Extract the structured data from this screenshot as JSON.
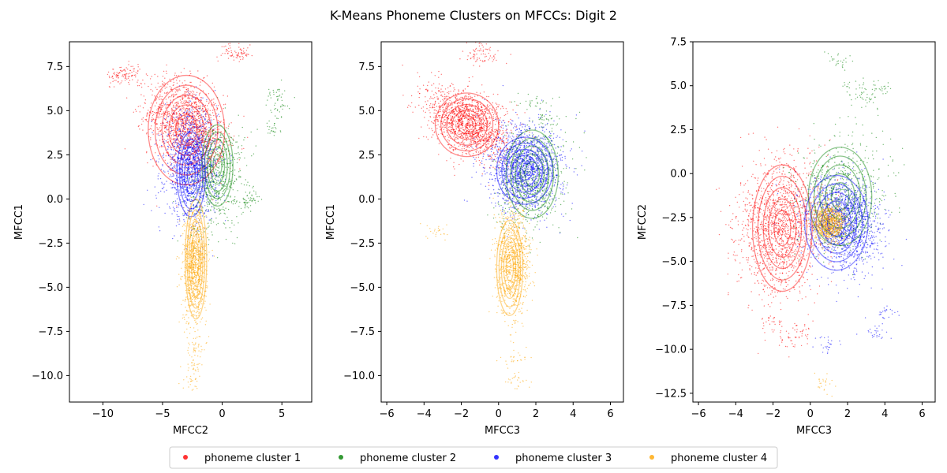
{
  "figure": {
    "title": "K-Means Phoneme Clusters on MFCCs: Digit 2"
  },
  "colors": {
    "cluster1": "#ff0000",
    "cluster2": "#008000",
    "cluster3": "#0000ff",
    "cluster4": "#ffa500"
  },
  "legend": {
    "placement": "bottom-center",
    "entries": [
      "phoneme cluster 1",
      "phoneme cluster 2",
      "phoneme cluster 3",
      "phoneme cluster 4"
    ]
  },
  "chart_data": [
    {
      "type": "scatter",
      "xlabel": "MFCC2",
      "ylabel": "MFCC1",
      "xlim": [
        -12.8,
        7.5
      ],
      "ylim": [
        -11.5,
        8.9
      ],
      "xticks": [
        -10,
        -5,
        0,
        5
      ],
      "yticks": [
        -10.0,
        -7.5,
        -5.0,
        -2.5,
        0.0,
        2.5,
        5.0,
        7.5
      ],
      "grid": false,
      "series": [
        {
          "name": "phoneme cluster 1",
          "color": "#ff0000",
          "center": [
            -3.0,
            4.2
          ],
          "spread": [
            1.6,
            1.3
          ],
          "corr": -0.3,
          "n": 1500,
          "extra_points": [
            [
              0.6,
              8.5
            ],
            [
              1.2,
              8.2
            ],
            [
              1.8,
              8.1
            ],
            [
              -9,
              7.0
            ],
            [
              -8.5,
              6.9
            ],
            [
              -8,
              7.1
            ],
            [
              -7.5,
              7.2
            ]
          ]
        },
        {
          "name": "phoneme cluster 2",
          "color": "#008000",
          "center": [
            -0.5,
            1.2
          ],
          "spread": [
            1.2,
            1.6
          ],
          "corr": 0.2,
          "n": 600,
          "extra_points": [
            [
              4.5,
              6.0
            ],
            [
              4.8,
              5.2
            ],
            [
              4.2,
              4.0
            ],
            [
              2.5,
              0.0
            ],
            [
              2.0,
              -0.3
            ]
          ]
        },
        {
          "name": "phoneme cluster 3",
          "color": "#0000ff",
          "center": [
            -2.6,
            1.9
          ],
          "spread": [
            1.1,
            1.5
          ],
          "corr": 0.0,
          "n": 1400,
          "extra_points": []
        },
        {
          "name": "phoneme cluster 4",
          "color": "#ffa500",
          "center": [
            -2.3,
            -3.8
          ],
          "spread": [
            0.5,
            1.6
          ],
          "corr": 0.0,
          "n": 900,
          "extra_points": [
            [
              -2.5,
              -8.5
            ],
            [
              -2.4,
              -9.5
            ],
            [
              -2.6,
              -10.4
            ]
          ]
        }
      ],
      "contours": [
        {
          "color": "#ff0000",
          "center": [
            -3.0,
            3.9
          ],
          "rx": 3.2,
          "ry": 3.1
        },
        {
          "color": "#008000",
          "center": [
            -0.4,
            1.9
          ],
          "rx": 1.3,
          "ry": 2.3
        },
        {
          "color": "#0000ff",
          "center": [
            -2.6,
            1.4
          ],
          "rx": 1.2,
          "ry": 2.4
        },
        {
          "color": "#ffa500",
          "center": [
            -2.2,
            -3.4
          ],
          "rx": 0.9,
          "ry": 3.4
        }
      ]
    },
    {
      "type": "scatter",
      "xlabel": "MFCC3",
      "ylabel": "MFCC1",
      "xlim": [
        -6.3,
        6.7
      ],
      "ylim": [
        -11.5,
        8.9
      ],
      "xticks": [
        -6,
        -4,
        -2,
        0,
        2,
        4,
        6
      ],
      "yticks": [
        -10.0,
        -7.5,
        -5.0,
        -2.5,
        0.0,
        2.5,
        5.0,
        7.5
      ],
      "grid": false,
      "series": [
        {
          "name": "phoneme cluster 1",
          "color": "#ff0000",
          "center": [
            -1.6,
            4.3
          ],
          "spread": [
            1.1,
            1.0
          ],
          "corr": -0.4,
          "n": 1500,
          "extra_points": [
            [
              -1.0,
              8.5
            ],
            [
              -1.3,
              8.0
            ],
            [
              -0.5,
              8.2
            ]
          ]
        },
        {
          "name": "phoneme cluster 2",
          "color": "#008000",
          "center": [
            1.8,
            1.2
          ],
          "spread": [
            0.9,
            1.5
          ],
          "corr": 0.2,
          "n": 600,
          "extra_points": [
            [
              2.0,
              5.5
            ],
            [
              2.5,
              4.5
            ]
          ]
        },
        {
          "name": "phoneme cluster 3",
          "color": "#0000ff",
          "center": [
            1.4,
            1.8
          ],
          "spread": [
            1.0,
            1.2
          ],
          "corr": 0.0,
          "n": 1400,
          "extra_points": []
        },
        {
          "name": "phoneme cluster 4",
          "color": "#ffa500",
          "center": [
            0.8,
            -3.5
          ],
          "spread": [
            0.45,
            1.5
          ],
          "corr": 0.0,
          "n": 900,
          "extra_points": [
            [
              1.0,
              -9.0
            ],
            [
              0.9,
              -10.3
            ],
            [
              -3.2,
              -1.9
            ]
          ]
        }
      ],
      "contours": [
        {
          "color": "#ff0000",
          "center": [
            -1.7,
            4.2
          ],
          "rx": 1.7,
          "ry": 1.8
        },
        {
          "color": "#008000",
          "center": [
            1.8,
            1.4
          ],
          "rx": 1.4,
          "ry": 2.5
        },
        {
          "color": "#0000ff",
          "center": [
            1.4,
            1.6
          ],
          "rx": 1.5,
          "ry": 1.9
        },
        {
          "color": "#ffa500",
          "center": [
            0.6,
            -3.9
          ],
          "rx": 0.7,
          "ry": 2.7
        }
      ]
    },
    {
      "type": "scatter",
      "xlabel": "MFCC3",
      "ylabel": "MFCC2",
      "xlim": [
        -6.3,
        6.7
      ],
      "ylim": [
        -13.0,
        7.5
      ],
      "xticks": [
        -6,
        -4,
        -2,
        0,
        2,
        4,
        6
      ],
      "yticks": [
        -12.5,
        -10.0,
        -7.5,
        -5.0,
        -2.5,
        0.0,
        2.5,
        5.0,
        7.5
      ],
      "grid": false,
      "series": [
        {
          "name": "phoneme cluster 1",
          "color": "#ff0000",
          "center": [
            -1.6,
            -3.0
          ],
          "spread": [
            1.1,
            1.9
          ],
          "corr": 0.1,
          "n": 1500,
          "extra_points": [
            [
              -0.5,
              -9.0
            ],
            [
              -1.2,
              -9.5
            ],
            [
              -2.0,
              -8.5
            ]
          ]
        },
        {
          "name": "phoneme cluster 2",
          "color": "#008000",
          "center": [
            1.7,
            -1.2
          ],
          "spread": [
            1.2,
            1.6
          ],
          "corr": 0.1,
          "n": 600,
          "extra_points": [
            [
              2.5,
              5.0
            ],
            [
              3.0,
              4.2
            ],
            [
              1.5,
              6.5
            ],
            [
              3.8,
              4.8
            ]
          ]
        },
        {
          "name": "phoneme cluster 3",
          "color": "#0000ff",
          "center": [
            1.8,
            -2.9
          ],
          "spread": [
            1.0,
            1.3
          ],
          "corr": -0.1,
          "n": 1400,
          "extra_points": [
            [
              3.5,
              -9.0
            ],
            [
              1.0,
              -9.8
            ],
            [
              4.0,
              -8.0
            ]
          ]
        },
        {
          "name": "phoneme cluster 4",
          "color": "#ffa500",
          "center": [
            1.0,
            -2.8
          ],
          "spread": [
            0.5,
            0.6
          ],
          "corr": 0.0,
          "n": 700,
          "extra_points": [
            [
              0.8,
              -12.0
            ]
          ]
        }
      ],
      "contours": [
        {
          "color": "#ff0000",
          "center": [
            -1.5,
            -3.1
          ],
          "rx": 1.6,
          "ry": 3.6
        },
        {
          "color": "#008000",
          "center": [
            1.6,
            -1.3
          ],
          "rx": 1.7,
          "ry": 2.8
        },
        {
          "color": "#0000ff",
          "center": [
            1.4,
            -2.8
          ],
          "rx": 1.7,
          "ry": 2.7
        },
        {
          "color": "#ffa500",
          "center": [
            1.0,
            -2.8
          ],
          "rx": 0.7,
          "ry": 0.8
        }
      ]
    }
  ]
}
